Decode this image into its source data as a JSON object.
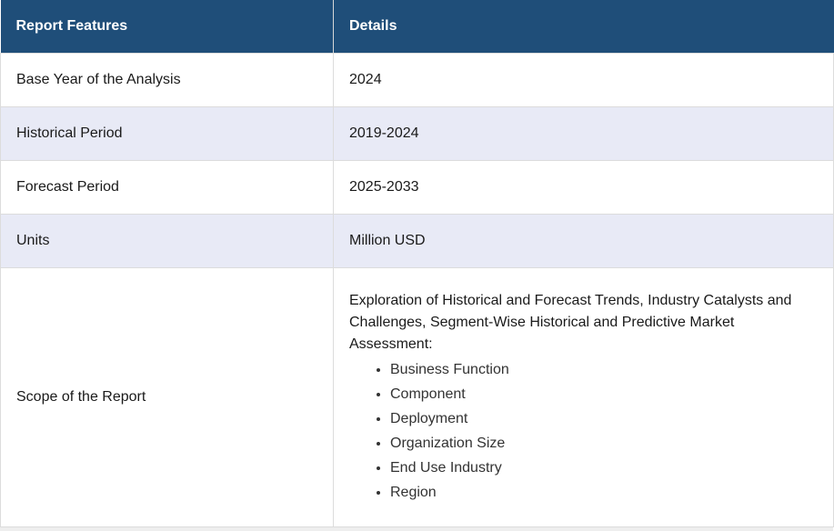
{
  "table": {
    "header": {
      "feature": "Report Features",
      "details": "Details"
    },
    "rows": [
      {
        "feature": "Base Year of the Analysis",
        "details": "2024"
      },
      {
        "feature": "Historical Period",
        "details": "2019-2024"
      },
      {
        "feature": "Forecast Period",
        "details": "2025-2033"
      },
      {
        "feature": "Units",
        "details": "Million USD"
      }
    ],
    "scope": {
      "feature": "Scope of the Report",
      "intro": "Exploration of Historical and Forecast Trends, Industry Catalysts and Challenges, Segment-Wise Historical and Predictive Market Assessment:",
      "items": [
        "Business Function",
        "Component",
        "Deployment",
        "Organization Size",
        "End Use Industry",
        "Region"
      ]
    }
  },
  "colors": {
    "header_bg": "#1f4e79",
    "header_text": "#ffffff",
    "shaded_row": "#e8eaf6",
    "border": "#dcdcdc"
  }
}
